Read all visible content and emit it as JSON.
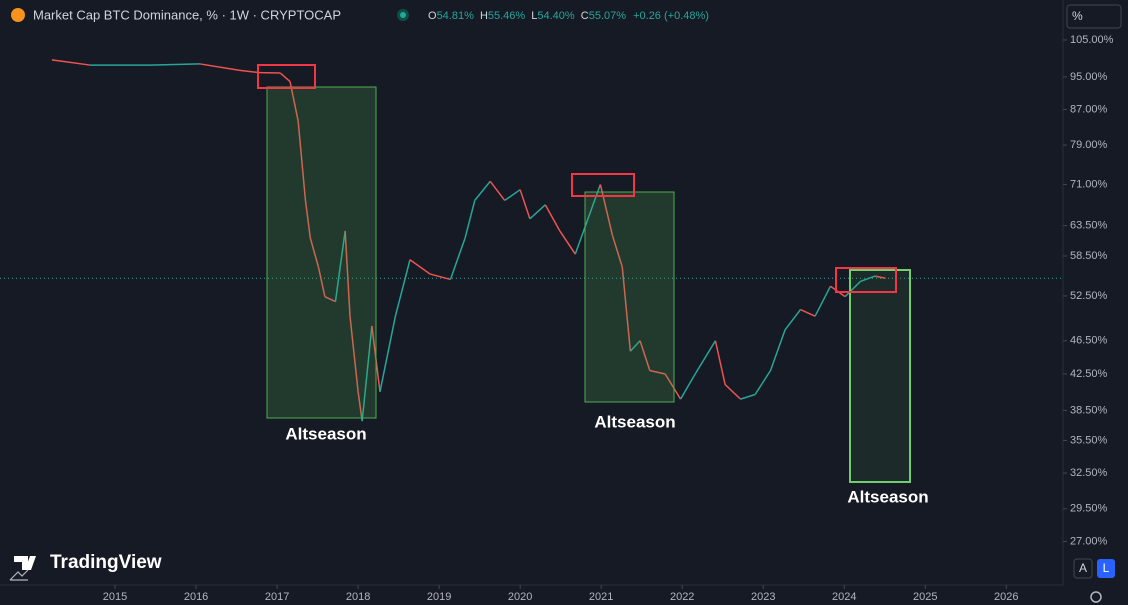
{
  "chart_data": {
    "type": "line",
    "title": "Market Cap BTC Dominance, % · 1W · CRYPTOCAP",
    "ohlc": [
      {
        "label": "O",
        "value": "54.81%"
      },
      {
        "label": "H",
        "value": "55.46%"
      },
      {
        "label": "L",
        "value": "54.40%"
      },
      {
        "label": "C",
        "value": "55.07%"
      }
    ],
    "change": "+0.26 (+0.48%)",
    "annotations": [
      "Altseason",
      "Altseason",
      "Altseason"
    ],
    "brand": "TradingView",
    "buttons": [
      "%",
      "A",
      "L"
    ],
    "x": [
      2014.22,
      2014.69,
      2015.43,
      2016.05,
      2016.54,
      2016.79,
      2017.04,
      2017.16,
      2017.26,
      2017.35,
      2017.41,
      2017.51,
      2017.59,
      2017.72,
      2017.84,
      2017.9,
      2018.0,
      2018.05,
      2018.17,
      2018.27,
      2018.46,
      2018.64,
      2018.89,
      2019.14,
      2019.32,
      2019.44,
      2019.63,
      2019.81,
      2020.0,
      2020.12,
      2020.31,
      2020.49,
      2020.68,
      2020.86,
      2020.99,
      2021.14,
      2021.26,
      2021.36,
      2021.48,
      2021.6,
      2021.79,
      2021.98,
      2022.16,
      2022.41,
      2022.53,
      2022.72,
      2022.9,
      2023.09,
      2023.27,
      2023.46,
      2023.64,
      2023.83,
      2024.01,
      2024.2,
      2024.38,
      2024.51
    ],
    "values": [
      99.5,
      98.1,
      98.1,
      98.4,
      96.7,
      96.1,
      96.0,
      93.8,
      84.3,
      68.0,
      61.4,
      56.8,
      52.4,
      51.7,
      62.6,
      49.7,
      40.5,
      37.4,
      48.4,
      40.5,
      49.7,
      57.9,
      55.7,
      54.9,
      61.4,
      68.0,
      71.6,
      68.0,
      70.0,
      64.7,
      67.2,
      62.6,
      58.8,
      65.6,
      71.0,
      61.8,
      56.8,
      45.2,
      46.5,
      42.9,
      42.5,
      39.7,
      42.5,
      46.5,
      41.3,
      39.7,
      40.2,
      42.9,
      47.9,
      50.6,
      49.7,
      53.9,
      52.4,
      54.6,
      55.4,
      55.07
    ],
    "last_value": 55.07,
    "colors": {
      "up": "#26a69a",
      "down": "#ef5350"
    },
    "log_scale": true,
    "grid": false,
    "xlim": [
      2013.58,
      2026.7
    ],
    "xticks": [
      2015,
      2016,
      2017,
      2018,
      2019,
      2020,
      2021,
      2022,
      2023,
      2024,
      2025,
      2026
    ],
    "ylim": [
      24,
      117
    ],
    "yticks": [
      {
        "value": 27,
        "label": "27.00%"
      },
      {
        "value": 29.5,
        "label": "29.50%"
      },
      {
        "value": 32.5,
        "label": "32.50%"
      },
      {
        "value": 35.5,
        "label": "35.50%"
      },
      {
        "value": 38.5,
        "label": "38.50%"
      },
      {
        "value": 42.5,
        "label": "42.50%"
      },
      {
        "value": 46.5,
        "label": "46.50%"
      },
      {
        "value": 52.5,
        "label": "52.50%"
      },
      {
        "value": 58.5,
        "label": "58.50%"
      },
      {
        "value": 63.5,
        "label": "63.50%"
      },
      {
        "value": 71,
        "label": "71.00%"
      },
      {
        "value": 79,
        "label": "79.00%"
      },
      {
        "value": 87,
        "label": "87.00%"
      },
      {
        "value": 95,
        "label": "95.00%"
      },
      {
        "value": 105,
        "label": "105.00%"
      }
    ]
  }
}
